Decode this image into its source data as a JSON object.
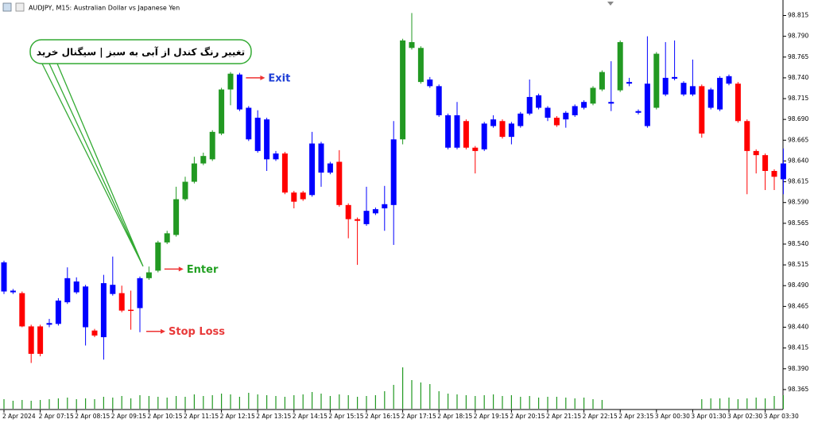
{
  "chart_data": {
    "type": "candlestick",
    "title": "AUDJPY, M15:  Australian Dollar vs Japanese Yen",
    "categories": [
      "2 Apr 2024",
      null,
      null,
      null,
      "2 Apr 07:15",
      null,
      null,
      null,
      "2 Apr 08:15",
      null,
      null,
      null,
      "2 Apr 09:15",
      null,
      null,
      null,
      "2 Apr 10:15",
      null,
      null,
      null,
      "2 Apr 11:15",
      null,
      null,
      null,
      "2 Apr 12:15",
      null,
      null,
      null,
      "2 Apr 13:15",
      null,
      null,
      null,
      "2 Apr 14:15",
      null,
      null,
      null,
      "2 Apr 15:15",
      null,
      null,
      null,
      "2 Apr 16:15",
      null,
      null,
      null,
      "2 Apr 17:15",
      null,
      null,
      null,
      "2 Apr 18:15",
      null,
      null,
      null,
      "2 Apr 19:15",
      null,
      null,
      null,
      "2 Apr 20:15",
      null,
      null,
      null,
      "2 Apr 21:15",
      null,
      null,
      null,
      "2 Apr 22:15",
      null,
      null,
      null,
      "2 Apr 23:15",
      null,
      null,
      null,
      "3 Apr 00:30",
      null,
      null,
      null,
      "3 Apr 01:30",
      null,
      null,
      null,
      "3 Apr 02:30",
      null,
      null,
      null,
      "3 Apr 03:30",
      null,
      null
    ],
    "open": [
      98.518,
      98.484,
      98.481,
      98.441,
      98.441,
      98.445,
      98.472,
      98.499,
      98.495,
      98.489,
      98.436,
      98.493,
      98.491,
      98.481,
      98.461,
      98.499,
      98.499,
      98.508,
      98.542,
      98.551,
      98.594,
      98.615,
      98.637,
      98.642,
      98.673,
      98.726,
      98.744,
      98.704,
      98.692,
      98.69,
      98.649,
      98.649,
      98.602,
      98.602,
      98.661,
      98.661,
      98.637,
      98.639,
      98.587,
      98.57,
      98.58,
      98.582,
      98.588,
      98.666,
      98.666,
      98.776,
      98.735,
      98.738,
      98.73,
      98.695,
      98.695,
      98.688,
      98.656,
      98.685,
      98.69,
      98.688,
      98.685,
      98.697,
      98.717,
      98.719,
      98.704,
      98.692,
      98.698,
      98.706,
      98.711,
      98.709,
      98.726,
      98.711,
      98.725,
      98.735,
      98.7,
      98.733,
      98.704,
      98.74,
      98.741,
      98.734,
      98.73,
      98.73,
      98.726,
      98.74,
      98.742,
      98.733,
      98.688,
      98.652,
      98.647,
      98.628,
      98.637
    ],
    "high": [
      98.52,
      98.486,
      98.483,
      98.443,
      98.443,
      98.45,
      98.475,
      98.512,
      98.5,
      98.491,
      98.438,
      98.503,
      98.525,
      98.49,
      98.484,
      98.501,
      98.513,
      98.544,
      98.556,
      98.609,
      98.621,
      98.645,
      98.65,
      98.677,
      98.728,
      98.747,
      98.746,
      98.706,
      98.701,
      98.692,
      98.652,
      98.651,
      98.604,
      98.604,
      98.675,
      98.663,
      98.639,
      98.653,
      98.589,
      98.572,
      98.609,
      98.584,
      98.61,
      98.688,
      98.787,
      98.818,
      98.778,
      98.741,
      98.732,
      98.697,
      98.711,
      98.69,
      98.658,
      98.687,
      98.695,
      98.69,
      98.687,
      98.699,
      98.738,
      98.721,
      98.706,
      98.694,
      98.7,
      98.708,
      98.713,
      98.73,
      98.749,
      98.76,
      98.785,
      98.74,
      98.702,
      98.79,
      98.771,
      98.783,
      98.785,
      98.736,
      98.762,
      98.732,
      98.728,
      98.742,
      98.744,
      98.735,
      98.69,
      98.654,
      98.649,
      98.63,
      98.655
    ],
    "low": [
      98.48,
      98.48,
      98.44,
      98.397,
      98.405,
      98.44,
      98.442,
      98.468,
      98.48,
      98.418,
      98.428,
      98.401,
      98.478,
      98.458,
      98.437,
      98.434,
      98.497,
      98.506,
      98.54,
      98.549,
      98.592,
      98.613,
      98.635,
      98.64,
      98.671,
      98.707,
      98.7,
      98.664,
      98.65,
      98.628,
      98.64,
      98.6,
      98.583,
      98.592,
      98.597,
      98.609,
      98.624,
      98.585,
      98.547,
      98.515,
      98.562,
      98.575,
      98.556,
      98.539,
      98.66,
      98.774,
      98.733,
      98.728,
      98.693,
      98.654,
      98.654,
      98.654,
      98.625,
      98.652,
      98.68,
      98.667,
      98.66,
      98.68,
      98.695,
      98.702,
      98.688,
      98.681,
      98.68,
      98.693,
      98.702,
      98.707,
      98.724,
      98.7,
      98.723,
      98.73,
      98.696,
      98.68,
      98.702,
      98.718,
      98.737,
      98.718,
      98.718,
      98.668,
      98.702,
      98.7,
      98.731,
      98.686,
      98.6,
      98.625,
      98.605,
      98.605,
      98.6
    ],
    "close": [
      98.483,
      98.482,
      98.441,
      98.408,
      98.408,
      98.443,
      98.444,
      98.47,
      98.482,
      98.44,
      98.43,
      98.428,
      98.48,
      98.46,
      98.46,
      98.463,
      98.506,
      98.542,
      98.553,
      98.594,
      98.615,
      98.637,
      98.646,
      98.675,
      98.726,
      98.745,
      98.702,
      98.666,
      98.652,
      98.642,
      98.642,
      98.602,
      98.591,
      98.594,
      98.599,
      98.626,
      98.626,
      98.587,
      98.57,
      98.568,
      98.564,
      98.577,
      98.583,
      98.587,
      98.785,
      98.783,
      98.776,
      98.73,
      98.695,
      98.656,
      98.656,
      98.656,
      98.652,
      98.654,
      98.682,
      98.669,
      98.669,
      98.682,
      98.697,
      98.704,
      98.692,
      98.683,
      98.69,
      98.695,
      98.704,
      98.728,
      98.747,
      98.709,
      98.783,
      98.733,
      98.698,
      98.682,
      98.769,
      98.72,
      98.739,
      98.72,
      98.72,
      98.673,
      98.704,
      98.702,
      98.733,
      98.688,
      98.652,
      98.647,
      98.628,
      98.621,
      98.618
    ],
    "colors": [
      "#00f",
      "#00f",
      "#f00",
      "#f00",
      "#f00",
      "#00f",
      "#00f",
      "#00f",
      "#00f",
      "#00f",
      "#f00",
      "#00f",
      "#00f",
      "#f00",
      "#f00",
      "#00f",
      "#292",
      "#292",
      "#292",
      "#292",
      "#292",
      "#292",
      "#292",
      "#292",
      "#292",
      "#292",
      "#00f",
      "#00f",
      "#00f",
      "#00f",
      "#00f",
      "#f00",
      "#f00",
      "#f00",
      "#00f",
      "#00f",
      "#00f",
      "#f00",
      "#f00",
      "#f00",
      "#00f",
      "#00f",
      "#00f",
      "#00f",
      "#292",
      "#292",
      "#292",
      "#00f",
      "#00f",
      "#00f",
      "#00f",
      "#f00",
      "#f00",
      "#00f",
      "#00f",
      "#f00",
      "#00f",
      "#00f",
      "#00f",
      "#00f",
      "#00f",
      "#f00",
      "#00f",
      "#00f",
      "#00f",
      "#292",
      "#292",
      "#00f",
      "#292",
      "#00f",
      "#00f",
      "#00f",
      "#292",
      "#00f",
      "#00f",
      "#00f",
      "#00f",
      "#f00",
      "#00f",
      "#00f",
      "#00f",
      "#f00",
      "#f00",
      "#f00",
      "#f00",
      "#f00",
      "#00f"
    ],
    "volumes": [
      12,
      10,
      11,
      10,
      11,
      12,
      13,
      14,
      12,
      13,
      12,
      15,
      14,
      16,
      13,
      17,
      16,
      15,
      14,
      16,
      15,
      18,
      16,
      17,
      19,
      18,
      15,
      20,
      18,
      17,
      16,
      15,
      17,
      18,
      21,
      19,
      16,
      18,
      17,
      15,
      16,
      17,
      22,
      30,
      52,
      36,
      33,
      31,
      22,
      19,
      18,
      17,
      16,
      17,
      18,
      16,
      17,
      15,
      16,
      14,
      15,
      15,
      14,
      13,
      14,
      12,
      11,
      null,
      null,
      null,
      null,
      null,
      null,
      null,
      null,
      null,
      null,
      12,
      13,
      13,
      14,
      12,
      13,
      14,
      13,
      16,
      17
    ],
    "volume_color": "#292",
    "ylim": [
      98.341,
      98.826
    ],
    "yticks": [
      98.365,
      {
        "value": 98.39,
        "label": "98.390"
      },
      98.415,
      {
        "value": 98.44,
        "label": "98.440"
      },
      98.465,
      {
        "value": 98.49,
        "label": "98.490"
      },
      98.515,
      {
        "value": 98.54,
        "label": "98.540"
      },
      98.565,
      {
        "value": 98.59,
        "label": "98.590"
      },
      98.615,
      {
        "value": 98.64,
        "label": "98.640"
      },
      98.665,
      {
        "value": 98.69,
        "label": "98.690"
      },
      98.715,
      {
        "value": 98.74,
        "label": "98.740"
      },
      98.765,
      {
        "value": 98.79,
        "label": "98.790"
      },
      98.815
    ],
    "callout": "تغییر رنگ کندل از آبی به سبز | سیگنال خرید",
    "annotations": [
      {
        "text": "Exit",
        "value": 98.74,
        "color": "#1e3fd6"
      },
      {
        "text": "Enter",
        "value": 98.51,
        "color": "#22a022"
      },
      {
        "text": "Stop Loss",
        "value": 98.435,
        "color": "#e83a3a"
      }
    ]
  }
}
